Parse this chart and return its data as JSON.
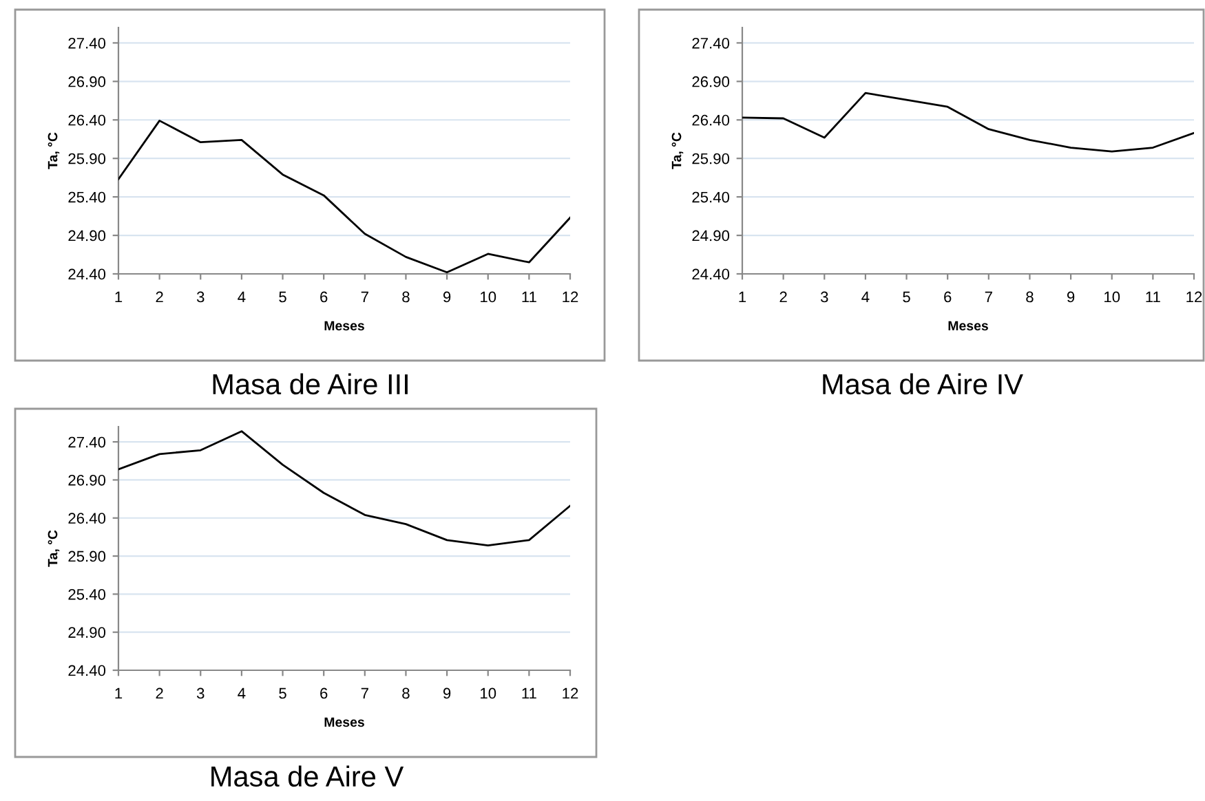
{
  "chart_data": [
    {
      "type": "line",
      "title": "Masa de Aire III",
      "xlabel": "Meses",
      "ylabel": "Ta, °C",
      "x": [
        1,
        2,
        3,
        4,
        5,
        6,
        7,
        8,
        9,
        10,
        11,
        12
      ],
      "series": [
        {
          "color": "#000000",
          "values": [
            25.63,
            26.39,
            26.11,
            26.14,
            25.69,
            25.42,
            24.92,
            24.62,
            24.42,
            24.66,
            24.55,
            25.13
          ]
        }
      ],
      "xlim": [
        1,
        12
      ],
      "xticks": [
        1,
        2,
        3,
        4,
        5,
        6,
        7,
        8,
        9,
        10,
        11,
        12
      ],
      "ylim": [
        24.4,
        27.6
      ],
      "yticks": [
        {
          "value": 24.4,
          "label": "24.40"
        },
        {
          "value": 24.9,
          "label": "24.90"
        },
        {
          "value": 25.4,
          "label": "25.40"
        },
        {
          "value": 25.9,
          "label": "25.90"
        },
        {
          "value": 26.4,
          "label": "26.40"
        },
        {
          "value": 26.9,
          "label": "26.90"
        },
        {
          "value": 27.4,
          "label": "27.40"
        }
      ],
      "grid": "y",
      "legend": false,
      "marker": "none",
      "line_style": "solid"
    },
    {
      "type": "line",
      "title": "Masa de Aire IV",
      "xlabel": "Meses",
      "ylabel": "Ta, °C",
      "x": [
        1,
        2,
        3,
        4,
        5,
        6,
        7,
        8,
        9,
        10,
        11,
        12
      ],
      "series": [
        {
          "color": "#000000",
          "values": [
            26.43,
            26.42,
            26.17,
            26.75,
            26.66,
            26.57,
            26.28,
            26.14,
            26.04,
            25.99,
            26.04,
            26.23
          ]
        }
      ],
      "xlim": [
        1,
        12
      ],
      "xticks": [
        1,
        2,
        3,
        4,
        5,
        6,
        7,
        8,
        9,
        10,
        11,
        12
      ],
      "ylim": [
        24.4,
        27.6
      ],
      "yticks": [
        {
          "value": 24.4,
          "label": "24.40"
        },
        {
          "value": 24.9,
          "label": "24.90"
        },
        {
          "value": 25.4,
          "label": "25.40"
        },
        {
          "value": 25.9,
          "label": "25.90"
        },
        {
          "value": 26.4,
          "label": "26.40"
        },
        {
          "value": 26.9,
          "label": "26.90"
        },
        {
          "value": 27.4,
          "label": "27.40"
        }
      ],
      "grid": "y",
      "legend": false,
      "marker": "none",
      "line_style": "solid"
    },
    {
      "type": "line",
      "title": "Masa de Aire V",
      "xlabel": "Meses",
      "ylabel": "Ta, °C",
      "x": [
        1,
        2,
        3,
        4,
        5,
        6,
        7,
        8,
        9,
        10,
        11,
        12
      ],
      "series": [
        {
          "color": "#000000",
          "values": [
            27.04,
            27.24,
            27.29,
            27.54,
            27.1,
            26.73,
            26.44,
            26.32,
            26.11,
            26.04,
            26.11,
            26.56
          ]
        }
      ],
      "xlim": [
        1,
        12
      ],
      "xticks": [
        1,
        2,
        3,
        4,
        5,
        6,
        7,
        8,
        9,
        10,
        11,
        12
      ],
      "ylim": [
        24.4,
        27.6
      ],
      "yticks": [
        {
          "value": 24.4,
          "label": "24.40"
        },
        {
          "value": 24.9,
          "label": "24.90"
        },
        {
          "value": 25.4,
          "label": "25.40"
        },
        {
          "value": 25.9,
          "label": "25.90"
        },
        {
          "value": 26.4,
          "label": "26.40"
        },
        {
          "value": 26.9,
          "label": "26.90"
        },
        {
          "value": 27.4,
          "label": "27.40"
        }
      ],
      "grid": "y",
      "legend": false,
      "marker": "none",
      "line_style": "solid"
    }
  ]
}
